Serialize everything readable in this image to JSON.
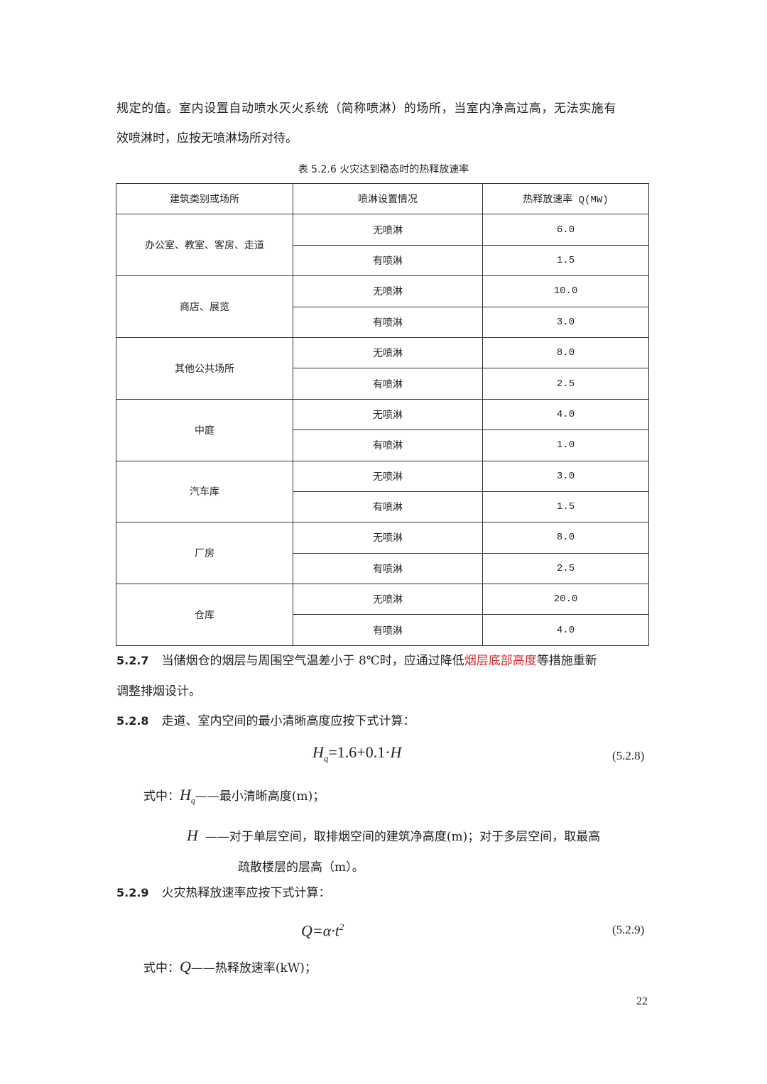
{
  "intro": {
    "line1": "规定的值。室内设置自动喷水灭火系统（简称喷淋）的场所，当室内净高过高，无法实施有",
    "line2": "效喷淋时，应按无喷淋场所对待。"
  },
  "table": {
    "caption": "表 5.2.6 火灾达到稳态时的热释放速率",
    "headers": [
      "建筑类别或场所",
      "喷淋设置情况",
      "热释放速率 Q(MW)"
    ],
    "groups": [
      {
        "place": "办公室、教室、客房、走道",
        "rows": [
          {
            "sprinkler": "无喷淋",
            "q": "6.0"
          },
          {
            "sprinkler": "有喷淋",
            "q": "1.5"
          }
        ]
      },
      {
        "place": "商店、展览",
        "rows": [
          {
            "sprinkler": "无喷淋",
            "q": "10.0"
          },
          {
            "sprinkler": "有喷淋",
            "q": "3.0"
          }
        ]
      },
      {
        "place": "其他公共场所",
        "rows": [
          {
            "sprinkler": "无喷淋",
            "q": "8.0"
          },
          {
            "sprinkler": "有喷淋",
            "q": "2.5"
          }
        ]
      },
      {
        "place": "中庭",
        "rows": [
          {
            "sprinkler": "无喷淋",
            "q": "4.0"
          },
          {
            "sprinkler": "有喷淋",
            "q": "1.0"
          }
        ]
      },
      {
        "place": "汽车库",
        "rows": [
          {
            "sprinkler": "无喷淋",
            "q": "3.0"
          },
          {
            "sprinkler": "有喷淋",
            "q": "1.5"
          }
        ]
      },
      {
        "place": "厂房",
        "rows": [
          {
            "sprinkler": "无喷淋",
            "q": "8.0"
          },
          {
            "sprinkler": "有喷淋",
            "q": "2.5"
          }
        ]
      },
      {
        "place": "仓库",
        "rows": [
          {
            "sprinkler": "无喷淋",
            "q": "20.0"
          },
          {
            "sprinkler": "有喷淋",
            "q": "4.0"
          }
        ]
      }
    ]
  },
  "s527": {
    "num": "5.2.7",
    "text_a": "当储烟仓的烟层与周围空气温差小于 8℃时，应通过降低",
    "highlight": "烟层底部高度",
    "text_b": "等措施重新",
    "line2": "调整排烟设计。",
    "highlight_color": "#d9282f"
  },
  "s528": {
    "num": "5.2.8",
    "text": "走道、室内空间的最小清晰高度应按下式计算：",
    "formula_lhs": "H",
    "formula_sub": "q",
    "formula_rhs": "=1.6+0.1·",
    "formula_var": "H",
    "eq_no": "(5.2.8)",
    "where": "式中：",
    "def1_sym": "H",
    "def1_sub": "q",
    "def1_text": "——最小清晰高度(m)；",
    "def2_sym": "H",
    "def2_text": "——对于单层空间，取排烟空间的建筑净高度(m)；对于多层空间，取最高",
    "def2_cont": "疏散楼层的层高（m）。"
  },
  "s529": {
    "num": "5.2.9",
    "text": "火灾热释放速率应按下式计算：",
    "formula": "Q=α·t",
    "formula_sup": "2",
    "eq_no": "(5.2.9)",
    "where": "式中：",
    "def1_sym": "Q",
    "def1_text": "——热释放速率(kW)；"
  },
  "page_number": "22"
}
